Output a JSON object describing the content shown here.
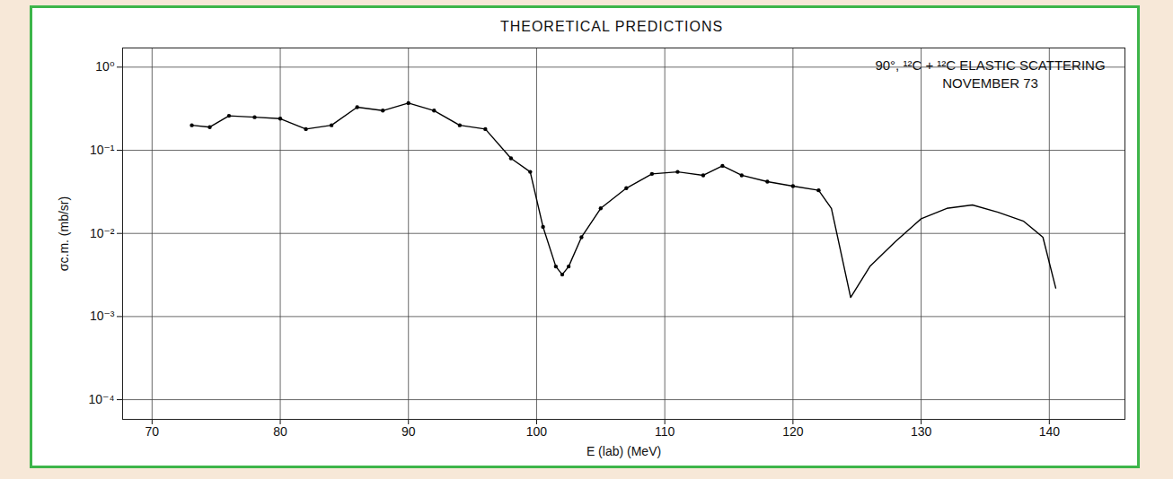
{
  "chart_data": {
    "type": "line",
    "title": "THEORETICAL PREDICTIONS",
    "annotations": [
      "90°, ¹²C + ¹²C ELASTIC SCATTERING",
      "NOVEMBER 73"
    ],
    "x_label": "E (lab) (MeV)",
    "y_label": "σc.m. (mb/sr)",
    "log": "y",
    "grid": true,
    "xlim": [
      67.7,
      145.9
    ],
    "xticks": [
      70,
      80,
      90,
      100,
      110,
      120,
      130,
      140
    ],
    "ylim": [
      5.8e-05,
      1.7
    ],
    "yticks": [
      {
        "value": 1,
        "label": "10⁰"
      },
      {
        "value": 0.1,
        "label": "10⁻¹"
      },
      {
        "value": 0.01,
        "label": "10⁻²"
      },
      {
        "value": 0.001,
        "label": "10⁻³"
      },
      {
        "value": 0.0001,
        "label": "10⁻⁴"
      }
    ],
    "series": [
      {
        "color": "#000000",
        "marker": "circle",
        "line_style": "solid",
        "x": [
          73.1,
          74.5,
          76,
          78,
          80,
          82,
          84,
          86,
          88,
          90,
          92,
          94,
          96,
          98,
          99.5,
          100.5,
          101.5,
          102,
          102.5,
          103.5,
          105,
          107,
          109,
          111,
          113,
          114.5,
          116,
          118,
          120,
          122
        ],
        "values": [
          0.2,
          0.19,
          0.26,
          0.25,
          0.24,
          0.18,
          0.2,
          0.33,
          0.3,
          0.37,
          0.3,
          0.2,
          0.18,
          0.08,
          0.055,
          0.012,
          0.004,
          0.0032,
          0.004,
          0.009,
          0.02,
          0.035,
          0.052,
          0.055,
          0.05,
          0.065,
          0.05,
          0.042,
          0.037,
          0.033
        ]
      },
      {
        "color": "#000000",
        "line_style": "solid",
        "x": [
          122,
          123,
          124.5,
          126,
          128,
          130,
          132,
          134,
          136,
          138,
          139.5,
          140.5
        ],
        "values": [
          0.033,
          0.02,
          0.0017,
          0.004,
          0.008,
          0.015,
          0.02,
          0.022,
          0.018,
          0.014,
          0.009,
          0.0022
        ]
      }
    ]
  }
}
